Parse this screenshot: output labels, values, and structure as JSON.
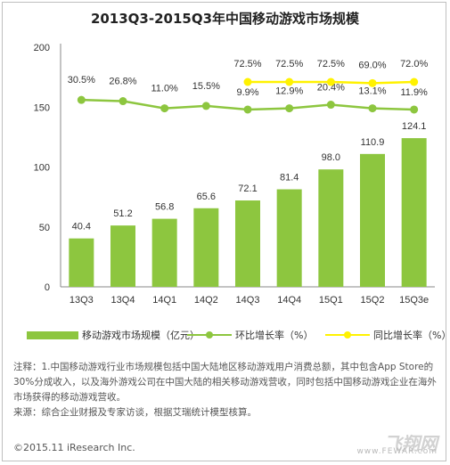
{
  "chart_data": {
    "type": "bar",
    "title": "2013Q3-2015Q3年中国移动游戏市场规模",
    "categories": [
      "13Q3",
      "13Q4",
      "14Q1",
      "14Q2",
      "14Q3",
      "14Q4",
      "15Q1",
      "15Q2",
      "15Q3e"
    ],
    "ylim": [
      0,
      200
    ],
    "yticks": [
      0,
      50,
      100,
      150,
      200
    ],
    "grid": false,
    "legend_position": "bottom",
    "series": [
      {
        "name": "移动游戏市场规模（亿元）",
        "type": "bar",
        "color": "#8dc63f",
        "values": [
          40.4,
          51.2,
          56.8,
          65.6,
          72.1,
          81.4,
          98.0,
          110.9,
          124.1
        ],
        "labels": [
          "40.4",
          "51.2",
          "56.8",
          "65.6",
          "72.1",
          "81.4",
          "98.0",
          "110.9",
          "124.1"
        ]
      },
      {
        "name": "环比增长率（%）",
        "type": "line",
        "color": "#8dc63f",
        "marker_color": "#8dc63f",
        "percent_values": [
          30.5,
          26.8,
          11.0,
          15.5,
          9.9,
          12.9,
          20.4,
          13.1,
          11.9
        ],
        "plot_values": [
          156,
          155,
          149,
          151,
          148,
          149,
          152,
          149,
          148
        ],
        "labels": [
          "30.5%",
          "26.8%",
          "11.0%",
          "15.5%",
          "9.9%",
          "12.9%",
          "20.4%",
          "13.1%",
          "11.9%"
        ]
      },
      {
        "name": "同比增长率（%）",
        "type": "line",
        "color": "#fff200",
        "marker_color": "#fff200",
        "start_index": 4,
        "percent_values": [
          72.5,
          72.5,
          72.5,
          69.0,
          72.0
        ],
        "plot_values": [
          171,
          171,
          171,
          170,
          171
        ],
        "labels": [
          "72.5%",
          "72.5%",
          "72.5%",
          "69.0%",
          "72.0%"
        ]
      }
    ]
  },
  "notes": [
    "注释：1.中国移动游戏行业市场规模包括中国大陆地区移动游戏用户消费总额，其中包含App Store的30%分成收入，以及海外游戏公司在中国大陆的相关移动游戏营收，同时包括中国移动游戏企业在海外市场获得的移动游戏营收。",
    "来源：综合企业财报及专家访谈，根据艾瑞统计模型核算。"
  ],
  "copyright": "©2015.11 iResearch Inc.",
  "watermark": {
    "logo": "飞翔网",
    "url": "www.FEWAR.com"
  }
}
